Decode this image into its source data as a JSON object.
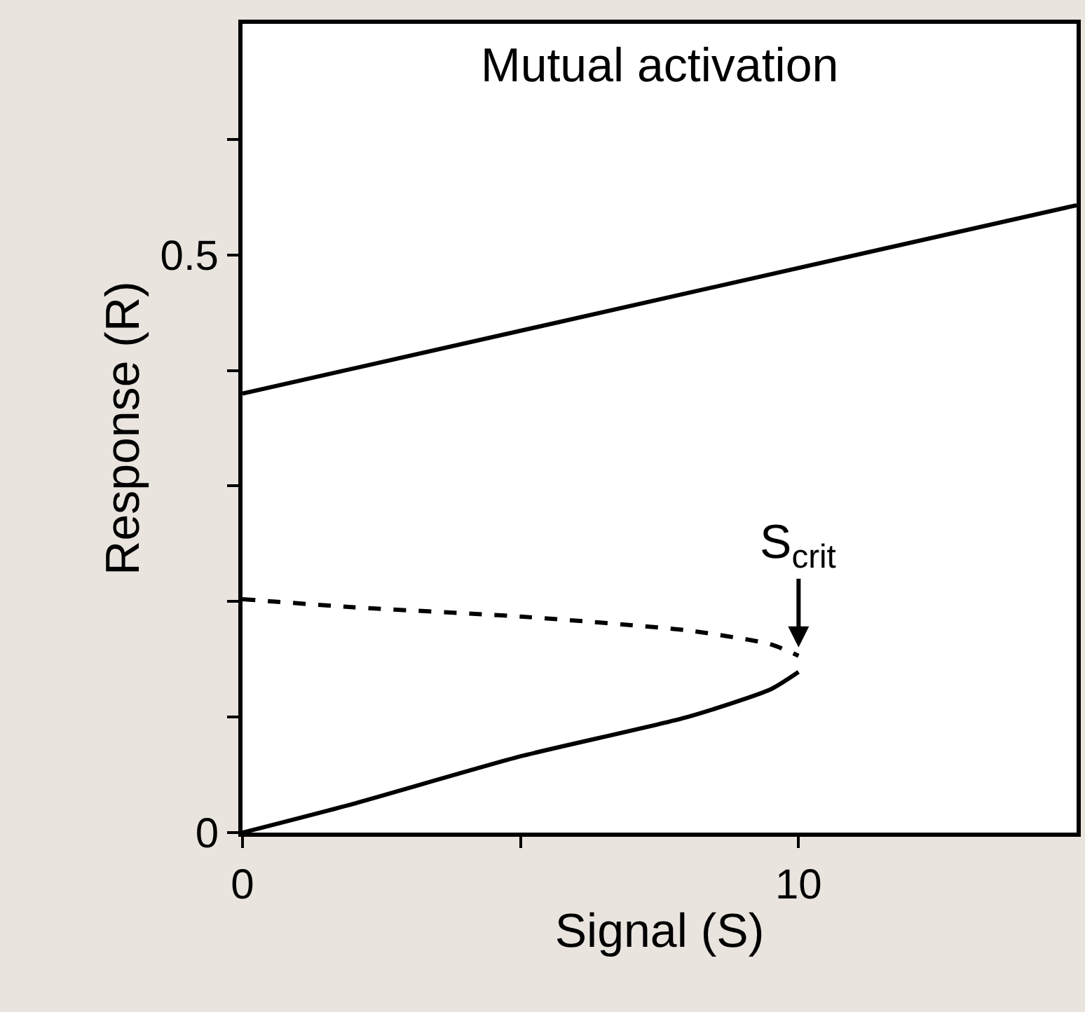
{
  "chart_data": {
    "type": "line",
    "title": "Mutual activation",
    "xlabel": "Signal (S)",
    "ylabel": "Response (R)",
    "xlim": [
      0,
      15
    ],
    "xticks": [
      0,
      {
        "value": 5,
        "label": null
      },
      10
    ],
    "ylim": [
      0,
      0.7
    ],
    "yticks": [
      0,
      {
        "value": 0.1,
        "label": null
      },
      {
        "value": 0.2,
        "label": null
      },
      {
        "value": 0.3,
        "label": null
      },
      {
        "value": 0.4,
        "label": null
      },
      0.5,
      {
        "value": 0.6,
        "label": null
      }
    ],
    "grid": false,
    "legend": false,
    "marker": "none",
    "series": [
      {
        "color": "#000000",
        "line_style": "solid",
        "x": [
          0,
          15
        ],
        "values": [
          0.38,
          0.543
        ]
      },
      {
        "color": "#000000",
        "line_style": "solid",
        "x": [
          0,
          2,
          5,
          8,
          9.5,
          10
        ],
        "values": [
          0,
          0.025,
          0.066,
          0.1,
          0.124,
          0.139
        ]
      },
      {
        "color": "#000000",
        "line_style": "dashed",
        "x": [
          0,
          2,
          5,
          8,
          9.5,
          10
        ],
        "values": [
          0.202,
          0.195,
          0.187,
          0.175,
          0.163,
          0.153
        ]
      }
    ],
    "annotations": [
      {
        "text": "S$_{crit}$",
        "x": 10,
        "y": 0.153
      }
    ]
  }
}
